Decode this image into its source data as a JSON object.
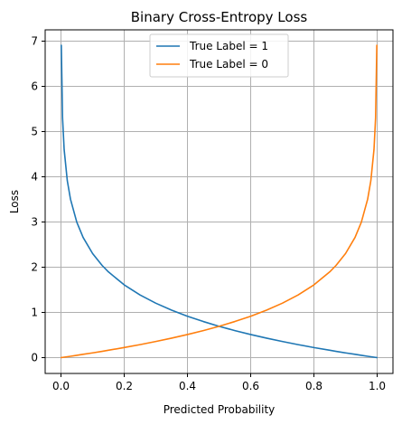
{
  "chart_data": {
    "type": "line",
    "title": "Binary Cross-Entropy Loss",
    "xlabel": "Predicted Probability",
    "ylabel": "Loss",
    "xlim": [
      -0.05,
      1.05
    ],
    "ylim": [
      -0.35,
      7.25
    ],
    "xticks": [
      0.0,
      0.2,
      0.4,
      0.6,
      0.8,
      1.0
    ],
    "xtick_labels": [
      "0.0",
      "0.2",
      "0.4",
      "0.6",
      "0.8",
      "1.0"
    ],
    "yticks": [
      0,
      1,
      2,
      3,
      4,
      5,
      6,
      7
    ],
    "ytick_labels": [
      "0",
      "1",
      "2",
      "3",
      "4",
      "5",
      "6",
      "7"
    ],
    "grid": true,
    "legend_position": "top-center",
    "x": [
      0.001,
      0.005,
      0.01,
      0.02,
      0.03,
      0.05,
      0.07,
      0.1,
      0.13,
      0.15,
      0.2,
      0.25,
      0.3,
      0.35,
      0.4,
      0.45,
      0.5,
      0.55,
      0.6,
      0.65,
      0.7,
      0.75,
      0.8,
      0.85,
      0.87,
      0.9,
      0.93,
      0.95,
      0.97,
      0.98,
      0.99,
      0.995,
      0.999
    ],
    "series": [
      {
        "name": "True Label = 1",
        "color": "#1f77b4",
        "values": [
          6.908,
          5.298,
          4.605,
          3.912,
          3.507,
          2.996,
          2.659,
          2.303,
          2.04,
          1.897,
          1.609,
          1.386,
          1.204,
          1.05,
          0.916,
          0.799,
          0.693,
          0.598,
          0.511,
          0.431,
          0.357,
          0.288,
          0.223,
          0.163,
          0.139,
          0.105,
          0.073,
          0.051,
          0.03,
          0.02,
          0.01,
          0.005,
          0.001
        ]
      },
      {
        "name": "True Label = 0",
        "color": "#ff7f0e",
        "values": [
          0.001,
          0.005,
          0.01,
          0.02,
          0.03,
          0.051,
          0.073,
          0.105,
          0.139,
          0.163,
          0.223,
          0.288,
          0.357,
          0.431,
          0.511,
          0.598,
          0.693,
          0.799,
          0.916,
          1.05,
          1.204,
          1.386,
          1.609,
          1.897,
          2.04,
          2.303,
          2.659,
          2.996,
          3.507,
          3.912,
          4.605,
          5.298,
          6.908
        ]
      }
    ]
  }
}
